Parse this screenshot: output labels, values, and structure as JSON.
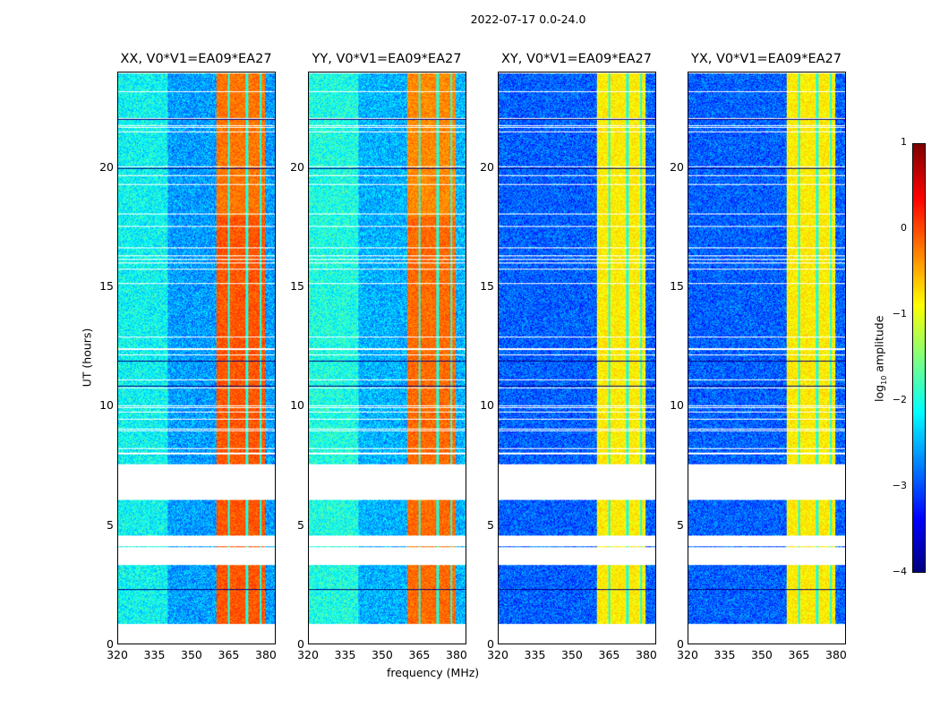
{
  "chart_data": {
    "type": "heatmap",
    "title": "2022-07-17 0.0-24.0",
    "xlabel": "frequency (MHz)",
    "ylabel": "UT (hours)",
    "xlim": [
      320,
      384
    ],
    "ylim": [
      0,
      24
    ],
    "xticks": [
      "320",
      "335",
      "350",
      "365",
      "380"
    ],
    "yticks": [
      "0",
      "5",
      "10",
      "15",
      "20"
    ],
    "panels": [
      {
        "title": "XX, V0*V1=EA09*EA27",
        "background_log_amp": -2.6,
        "band_log_amp": -0.2
      },
      {
        "title": "YY, V0*V1=EA09*EA27",
        "background_log_amp": -2.5,
        "band_log_amp": -0.3
      },
      {
        "title": "XY, V0*V1=EA09*EA27",
        "background_log_amp": -2.9,
        "band_log_amp": -0.8
      },
      {
        "title": "YX, V0*V1=EA09*EA27",
        "background_log_amp": -2.9,
        "band_log_amp": -0.8
      }
    ],
    "bright_band_mhz": [
      360,
      380
    ],
    "blank_time_ranges_hours": [
      [
        0,
        0.85
      ],
      [
        3.3,
        4.05
      ],
      [
        4.1,
        4.55
      ],
      [
        6.05,
        7.5
      ]
    ],
    "colorbar": {
      "label": "log10 amplitude",
      "range": [
        -4,
        1
      ],
      "ticks": [
        "1",
        "0",
        "−1",
        "−2",
        "−3",
        "−4"
      ],
      "colormap": "jet"
    }
  }
}
